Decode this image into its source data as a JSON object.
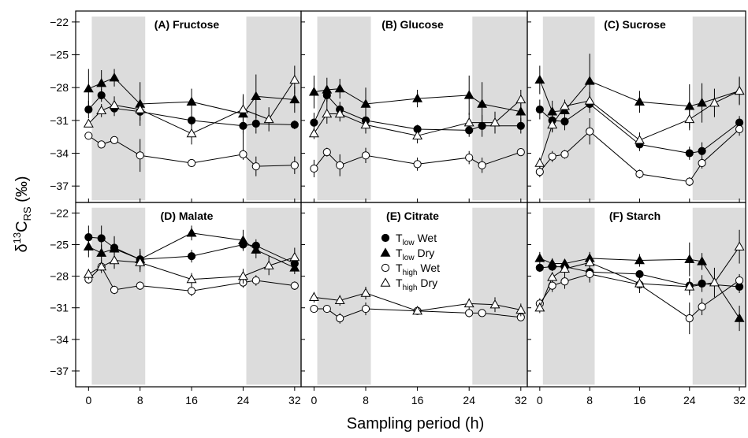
{
  "figure": {
    "ylabel_prefix": "δ",
    "ylabel_sup": "13",
    "ylabel_main": "C",
    "ylabel_sub": "RS",
    "ylabel_suffix": " (‰)",
    "xlabel": "Sampling period (h)",
    "x_ticks": [
      "0",
      "8",
      "16",
      "24",
      "32"
    ],
    "y_ticks": [
      "−22",
      "−25",
      "−28",
      "−31",
      "−34",
      "−37"
    ],
    "legend": {
      "position": "panel-E-center",
      "entries": [
        {
          "marker": "filled-circle",
          "base": "T",
          "sub": "low",
          "rest": " Wet"
        },
        {
          "marker": "filled-triangle",
          "base": "T",
          "sub": "low",
          "rest": " Dry"
        },
        {
          "marker": "open-circle",
          "base": "T",
          "sub": "high",
          "rest": " Wet"
        },
        {
          "marker": "open-triangle",
          "base": "T",
          "sub": "high",
          "rest": " Dry"
        }
      ]
    },
    "shade_color": "#dcdcdc"
  },
  "chart_data": [
    {
      "type": "line",
      "title": "(A) Fructose",
      "xlim": [
        -2,
        33
      ],
      "ylim": [
        -38.5,
        -21
      ],
      "grid": false,
      "shaded_x": [
        [
          0.5,
          8.8
        ],
        [
          24.5,
          33
        ]
      ],
      "series": [
        {
          "marker": "filled-circle",
          "x": [
            0,
            2,
            4,
            8,
            16,
            24,
            26,
            32
          ],
          "y": [
            -30.0,
            -28.7,
            -29.9,
            -30.2,
            -31.0,
            -31.5,
            -31.3,
            -31.4
          ],
          "err": [
            0.8,
            0.6,
            0.7,
            0.8,
            0.5,
            2.5,
            0.9,
            0.4
          ]
        },
        {
          "marker": "filled-triangle",
          "x": [
            0,
            2,
            4,
            8,
            16,
            24,
            26,
            32
          ],
          "y": [
            -28.1,
            -27.6,
            -27.1,
            -29.5,
            -29.3,
            -30.4,
            -28.8,
            -29.1
          ],
          "err": [
            1.8,
            1.2,
            0.8,
            2.0,
            1.2,
            1.8,
            2.0,
            1.2
          ]
        },
        {
          "marker": "open-circle",
          "x": [
            0,
            2,
            4,
            8,
            16,
            24,
            26,
            32
          ],
          "y": [
            -32.4,
            -33.2,
            -32.8,
            -34.2,
            -34.9,
            -34.1,
            -35.2,
            -35.1
          ],
          "err": [
            0.3,
            0.3,
            0.3,
            1.5,
            0.3,
            0.5,
            0.9,
            0.8
          ]
        },
        {
          "marker": "open-triangle",
          "x": [
            0,
            2,
            4,
            8,
            16,
            24,
            28,
            32
          ],
          "y": [
            -31.3,
            -30.1,
            -29.6,
            -30.0,
            -32.2,
            -30.0,
            -30.9,
            -27.3
          ],
          "err": [
            0.3,
            0.6,
            0.8,
            0.6,
            1.0,
            1.2,
            1.1,
            1.3
          ]
        }
      ]
    },
    {
      "type": "line",
      "title": "(B) Glucose",
      "xlim": [
        -2,
        33
      ],
      "ylim": [
        -38.5,
        -21
      ],
      "grid": false,
      "shaded_x": [
        [
          0.5,
          8.8
        ],
        [
          24.5,
          33
        ]
      ],
      "series": [
        {
          "marker": "filled-circle",
          "x": [
            0,
            2,
            4,
            8,
            16,
            24,
            26,
            32
          ],
          "y": [
            -31.2,
            -28.7,
            -30.0,
            -31.0,
            -31.8,
            -31.9,
            -31.5,
            -31.5
          ],
          "err": [
            0.9,
            0.8,
            0.7,
            0.6,
            0.4,
            0.6,
            1.0,
            0.7
          ]
        },
        {
          "marker": "filled-triangle",
          "x": [
            0,
            2,
            4,
            8,
            16,
            24,
            26,
            32
          ],
          "y": [
            -28.4,
            -28.2,
            -28.1,
            -29.5,
            -29.0,
            -28.7,
            -29.5,
            -30.2
          ],
          "err": [
            1.5,
            1.1,
            0.9,
            1.5,
            0.8,
            1.8,
            2.0,
            1.2
          ]
        },
        {
          "marker": "open-circle",
          "x": [
            0,
            2,
            4,
            8,
            16,
            24,
            26,
            32
          ],
          "y": [
            -35.4,
            -33.9,
            -35.1,
            -34.2,
            -35.0,
            -34.4,
            -35.1,
            -33.9
          ],
          "err": [
            0.8,
            0.4,
            1.0,
            0.7,
            0.6,
            0.6,
            0.7,
            0.3
          ]
        },
        {
          "marker": "open-triangle",
          "x": [
            0,
            2,
            4,
            8,
            16,
            24,
            28,
            32
          ],
          "y": [
            -32.2,
            -30.4,
            -30.4,
            -31.4,
            -32.4,
            -31.2,
            -31.2,
            -29.1
          ],
          "err": [
            0.5,
            0.9,
            0.7,
            0.8,
            0.7,
            0.9,
            1.0,
            0.9
          ]
        }
      ]
    },
    {
      "type": "line",
      "title": "(C) Sucrose",
      "xlim": [
        -2,
        33
      ],
      "ylim": [
        -38.5,
        -21
      ],
      "grid": false,
      "shaded_x": [
        [
          0.5,
          8.8
        ],
        [
          24.5,
          33
        ]
      ],
      "series": [
        {
          "marker": "filled-circle",
          "x": [
            0,
            2,
            4,
            8,
            16,
            24,
            26,
            32
          ],
          "y": [
            -30.0,
            -31.0,
            -31.1,
            -29.5,
            -33.2,
            -34.0,
            -33.8,
            -31.2
          ],
          "err": [
            0.9,
            1.0,
            0.8,
            0.8,
            0.6,
            0.6,
            0.8,
            0.6
          ]
        },
        {
          "marker": "filled-triangle",
          "x": [
            0,
            2,
            4,
            8,
            16,
            24,
            26,
            32
          ],
          "y": [
            -27.3,
            -30.2,
            -30.1,
            -27.4,
            -29.3,
            -29.7,
            -29.4,
            -28.3
          ],
          "err": [
            1.3,
            1.0,
            0.8,
            2.5,
            1.0,
            2.0,
            1.8,
            1.3
          ]
        },
        {
          "marker": "open-circle",
          "x": [
            0,
            2,
            4,
            8,
            16,
            24,
            26,
            32
          ],
          "y": [
            -35.7,
            -34.3,
            -34.1,
            -32.0,
            -35.9,
            -36.6,
            -34.9,
            -31.8
          ],
          "err": [
            0.5,
            0.5,
            0.4,
            1.2,
            0.4,
            0.4,
            0.5,
            0.6
          ]
        },
        {
          "marker": "open-triangle",
          "x": [
            0,
            2,
            4,
            8,
            16,
            24,
            28,
            32
          ],
          "y": [
            -34.9,
            -31.4,
            -29.7,
            -29.2,
            -32.8,
            -30.9,
            -29.4,
            -28.3
          ],
          "err": [
            0.5,
            0.7,
            0.6,
            0.8,
            0.7,
            1.0,
            1.3,
            1.2
          ]
        }
      ]
    },
    {
      "type": "line",
      "title": "(D) Malate",
      "xlim": [
        -2,
        33
      ],
      "ylim": [
        -38.5,
        -21
      ],
      "grid": false,
      "shaded_x": [
        [
          0.5,
          8.8
        ],
        [
          24.5,
          33
        ]
      ],
      "series": [
        {
          "marker": "filled-circle",
          "x": [
            0,
            2,
            4,
            8,
            16,
            24,
            26,
            32
          ],
          "y": [
            -24.3,
            -24.4,
            -25.3,
            -26.4,
            -26.1,
            -25.0,
            -25.1,
            -26.8
          ],
          "err": [
            1.1,
            1.2,
            1.0,
            0.8,
            0.6,
            0.5,
            0.6,
            0.5
          ]
        },
        {
          "marker": "filled-triangle",
          "x": [
            0,
            2,
            4,
            8,
            16,
            24,
            26,
            32
          ],
          "y": [
            -25.2,
            -25.8,
            -25.4,
            -26.4,
            -23.9,
            -24.6,
            -25.5,
            -27.2
          ],
          "err": [
            1.0,
            0.8,
            1.2,
            1.0,
            0.7,
            1.0,
            0.8,
            0.6
          ]
        },
        {
          "marker": "open-circle",
          "x": [
            0,
            2,
            4,
            8,
            16,
            24,
            26,
            32
          ],
          "y": [
            -28.3,
            -27.1,
            -29.3,
            -28.9,
            -29.4,
            -28.6,
            -28.4,
            -28.9
          ],
          "err": [
            0.4,
            0.3,
            0.4,
            0.4,
            0.5,
            0.5,
            0.5,
            0.4
          ]
        },
        {
          "marker": "open-triangle",
          "x": [
            0,
            2,
            4,
            8,
            16,
            24,
            28,
            32
          ],
          "y": [
            -27.8,
            -27.1,
            -26.5,
            -26.7,
            -28.3,
            -28.0,
            -27.0,
            -26.2
          ],
          "err": [
            0.5,
            0.6,
            0.8,
            0.9,
            0.6,
            0.7,
            0.9,
            0.9
          ]
        }
      ]
    },
    {
      "type": "line",
      "title": "(E) Citrate",
      "xlim": [
        -2,
        33
      ],
      "ylim": [
        -38.5,
        -21
      ],
      "grid": false,
      "shaded_x": [
        [
          0.5,
          8.8
        ],
        [
          24.5,
          33
        ]
      ],
      "series": [
        {
          "marker": "open-circle",
          "x": [
            0,
            2,
            4,
            8,
            16,
            24,
            26,
            32
          ],
          "y": [
            -31.1,
            -31.1,
            -32.0,
            -31.1,
            -31.3,
            -31.5,
            -31.5,
            -31.9
          ],
          "err": [
            0.3,
            0.3,
            0.5,
            0.6,
            0.3,
            0.4,
            0.3,
            0.3
          ]
        },
        {
          "marker": "open-triangle",
          "x": [
            0,
            4,
            8,
            16,
            24,
            28,
            32
          ],
          "y": [
            -30.0,
            -30.3,
            -29.6,
            -31.3,
            -30.6,
            -30.7,
            -31.2
          ],
          "err": [
            0.5,
            0.5,
            0.6,
            0.3,
            0.5,
            0.7,
            0.6
          ]
        }
      ]
    },
    {
      "type": "line",
      "title": "(F) Starch",
      "xlim": [
        -2,
        33
      ],
      "ylim": [
        -38.5,
        -21
      ],
      "grid": false,
      "shaded_x": [
        [
          0.5,
          8.8
        ],
        [
          24.5,
          33
        ]
      ],
      "series": [
        {
          "marker": "filled-circle",
          "x": [
            0,
            2,
            4,
            8,
            16,
            24,
            26,
            32
          ],
          "y": [
            -27.2,
            -27.1,
            -27.1,
            -27.6,
            -27.8,
            -28.9,
            -28.7,
            -29.0
          ],
          "err": [
            0.4,
            0.4,
            0.4,
            1.0,
            0.3,
            0.7,
            0.8,
            0.6
          ]
        },
        {
          "marker": "filled-triangle",
          "x": [
            0,
            2,
            4,
            8,
            16,
            24,
            26,
            32
          ],
          "y": [
            -26.3,
            -26.8,
            -26.8,
            -26.3,
            -26.5,
            -26.4,
            -26.6,
            -32.0
          ],
          "err": [
            0.6,
            0.5,
            0.4,
            0.6,
            0.6,
            1.6,
            0.8,
            1.2
          ]
        },
        {
          "marker": "open-circle",
          "x": [
            0,
            2,
            4,
            8,
            16,
            24,
            26,
            32
          ],
          "y": [
            -30.6,
            -28.9,
            -28.5,
            -27.8,
            -28.8,
            -32.0,
            -30.9,
            -28.4
          ],
          "err": [
            0.5,
            0.6,
            0.7,
            0.6,
            0.8,
            1.5,
            0.8,
            0.6
          ]
        },
        {
          "marker": "open-triangle",
          "x": [
            0,
            2,
            4,
            8,
            16,
            24,
            28,
            32
          ],
          "y": [
            -31.0,
            -28.1,
            -27.3,
            -26.7,
            -28.7,
            -29.0,
            -28.6,
            -25.2
          ],
          "err": [
            0.5,
            0.5,
            0.7,
            0.6,
            0.7,
            0.8,
            1.4,
            1.6
          ]
        }
      ]
    }
  ]
}
